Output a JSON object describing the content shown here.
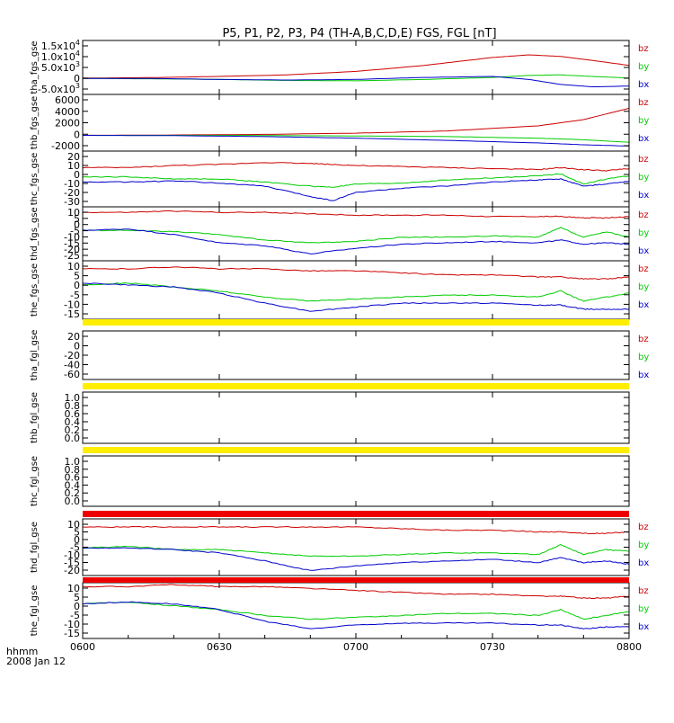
{
  "title": "P5, P1, P2, P3, P4 (TH-A,B,C,D,E) FGS, FGL [nT]",
  "footer": {
    "axis_label": "hhmm",
    "date": "2008 Jan 12"
  },
  "x_ticks": [
    "0600",
    "0630",
    "0700",
    "0730",
    "0800"
  ],
  "colors": {
    "bx": "#0000cc",
    "by": "#00cc00",
    "bz": "#cc0000",
    "flag_yellow": "#ffee00",
    "flag_red": "#ee0000",
    "axis": "#000000"
  },
  "panels": [
    {
      "ylabel": "tha_fgs_gse",
      "ticks": [
        [
          "1.5x10",
          "4"
        ],
        [
          "1.0x10",
          "4"
        ],
        [
          "5.0x10",
          "3"
        ],
        [
          "0",
          ""
        ],
        [
          "-5.0x10",
          "3"
        ]
      ],
      "legend": [
        "bz",
        "by",
        "bx"
      ]
    },
    {
      "ylabel": "thb_fgs_gse",
      "ticks": [
        [
          "6000",
          ""
        ],
        [
          "4000",
          ""
        ],
        [
          "2000",
          ""
        ],
        [
          "0",
          ""
        ],
        [
          "-2000",
          ""
        ]
      ],
      "legend": [
        "bz",
        "by",
        "bx"
      ]
    },
    {
      "ylabel": "thc_fgs_gse",
      "ticks": [
        [
          "20",
          ""
        ],
        [
          "10",
          ""
        ],
        [
          "0",
          ""
        ],
        [
          "-10",
          ""
        ],
        [
          "-20",
          ""
        ],
        [
          "-30",
          ""
        ]
      ],
      "legend": [
        "bz",
        "by",
        "bx"
      ]
    },
    {
      "ylabel": "thd_fgs_gse",
      "ticks": [
        [
          "10",
          ""
        ],
        [
          "5",
          ""
        ],
        [
          "0",
          ""
        ],
        [
          "-5",
          ""
        ],
        [
          "-10",
          ""
        ],
        [
          "-15",
          ""
        ],
        [
          "-20",
          ""
        ],
        [
          "-25",
          ""
        ]
      ],
      "legend": [
        "bz",
        "by",
        "bx"
      ]
    },
    {
      "ylabel": "the_fgs_gse",
      "ticks": [
        [
          "10",
          ""
        ],
        [
          "5",
          ""
        ],
        [
          "0",
          ""
        ],
        [
          "-5",
          ""
        ],
        [
          "-10",
          ""
        ],
        [
          "-15",
          ""
        ]
      ],
      "legend": [
        "bz",
        "by",
        "bx"
      ]
    },
    {
      "ylabel": "tha_fgl_gse",
      "ticks": [
        [
          "20",
          ""
        ],
        [
          "0",
          ""
        ],
        [
          "-20",
          ""
        ],
        [
          "-40",
          ""
        ],
        [
          "-60",
          ""
        ]
      ],
      "legend": [
        "bz",
        "by",
        "bx"
      ]
    },
    {
      "ylabel": "thb_fgl_gse",
      "ticks": [
        [
          "1.0",
          ""
        ],
        [
          "0.8",
          ""
        ],
        [
          "0.6",
          ""
        ],
        [
          "0.4",
          ""
        ],
        [
          "0.2",
          ""
        ],
        [
          "0.0",
          ""
        ]
      ],
      "legend": []
    },
    {
      "ylabel": "thc_fgl_gse",
      "ticks": [
        [
          "1.0",
          ""
        ],
        [
          "0.8",
          ""
        ],
        [
          "0.6",
          ""
        ],
        [
          "0.4",
          ""
        ],
        [
          "0.2",
          ""
        ],
        [
          "0.0",
          ""
        ]
      ],
      "legend": []
    },
    {
      "ylabel": "thd_fgl_gse",
      "ticks": [
        [
          "10",
          ""
        ],
        [
          "5",
          ""
        ],
        [
          "0",
          ""
        ],
        [
          "-5",
          ""
        ],
        [
          "-10",
          ""
        ],
        [
          "-15",
          ""
        ],
        [
          "-20",
          ""
        ]
      ],
      "legend": [
        "bz",
        "by",
        "bx"
      ]
    },
    {
      "ylabel": "the_fgl_gse",
      "ticks": [
        [
          "10",
          ""
        ],
        [
          "5",
          ""
        ],
        [
          "0",
          ""
        ],
        [
          "-5",
          ""
        ],
        [
          "-10",
          ""
        ],
        [
          "-15",
          ""
        ]
      ],
      "legend": [
        "bz",
        "by",
        "bx"
      ]
    }
  ],
  "chart_data": {
    "type": "line",
    "title": "P5, P1, P2, P3, P4 (TH-A,B,C,D,E) FGS, FGL [nT]",
    "x_unit": "hhmm (UT), 2008 Jan 12",
    "x_range": [
      "0600",
      "0800"
    ],
    "grid": false,
    "legend_placement": "right of each panel",
    "panels": [
      {
        "name": "tha_fgs_gse",
        "ylim": [
          -8000,
          19000
        ],
        "x": [
          "0600",
          "0615",
          "0630",
          "0645",
          "0700",
          "0715",
          "0730",
          "0738",
          "0745",
          "0752",
          "0800"
        ],
        "series": [
          {
            "name": "bz",
            "values": [
              200,
              400,
              1000,
              1800,
              3500,
              6500,
              10500,
              11800,
              11000,
              9000,
              6500
            ]
          },
          {
            "name": "by",
            "values": [
              0,
              -200,
              -500,
              -1000,
              -1200,
              -500,
              500,
              1500,
              1800,
              1000,
              200
            ]
          },
          {
            "name": "bx",
            "values": [
              0,
              0,
              -500,
              -800,
              -500,
              500,
              1000,
              -500,
              -3000,
              -4200,
              -3800
            ]
          }
        ]
      },
      {
        "name": "thb_fgs_gse",
        "ylim": [
          -2500,
          6500
        ],
        "x": [
          "0600",
          "0620",
          "0640",
          "0700",
          "0720",
          "0740",
          "0750",
          "0800"
        ],
        "series": [
          {
            "name": "bz",
            "values": [
              0,
              50,
              150,
              350,
              700,
              1500,
              2500,
              4300
            ]
          },
          {
            "name": "by",
            "values": [
              0,
              0,
              -30,
              -100,
              -200,
              -450,
              -700,
              -1100
            ]
          },
          {
            "name": "bx",
            "values": [
              0,
              -50,
              -200,
              -450,
              -800,
              -1200,
              -1500,
              -1700
            ]
          }
        ]
      },
      {
        "name": "thc_fgs_gse",
        "ylim": [
          -32,
          22
        ],
        "x": [
          "0600",
          "0610",
          "0620",
          "0630",
          "0640",
          "0650",
          "0655",
          "0700",
          "0710",
          "0720",
          "0730",
          "0740",
          "0745",
          "0750",
          "0755",
          "0800"
        ],
        "series": [
          {
            "name": "bz",
            "values": [
              6,
              6,
              8,
              9,
              11,
              10,
              9,
              8,
              7,
              6,
              5,
              4,
              6,
              4,
              3,
              5
            ]
          },
          {
            "name": "by",
            "values": [
              -3,
              -3,
              -5,
              -5,
              -8,
              -12,
              -13,
              -10,
              -9,
              -6,
              -4,
              -2,
              0,
              -10,
              -5,
              -2
            ]
          },
          {
            "name": "bx",
            "values": [
              -8,
              -8,
              -7,
              -9,
              -12,
              -22,
              -26,
              -18,
              -14,
              -12,
              -8,
              -6,
              -5,
              -12,
              -10,
              -7
            ]
          }
        ]
      },
      {
        "name": "thd_fgs_gse",
        "ylim": [
          -27,
          12
        ],
        "x": [
          "0600",
          "0610",
          "0620",
          "0630",
          "0640",
          "0650",
          "0700",
          "0710",
          "0720",
          "0730",
          "0740",
          "0745",
          "0750",
          "0755",
          "0800"
        ],
        "series": [
          {
            "name": "bz",
            "values": [
              8,
              8,
              9,
              8,
              8,
              7,
              6,
              6,
              6,
              5,
              5,
              5,
              4,
              4,
              5
            ]
          },
          {
            "name": "by",
            "values": [
              -5,
              -5,
              -6,
              -8,
              -12,
              -14,
              -13,
              -10,
              -10,
              -9,
              -10,
              -3,
              -10,
              -6,
              -10
            ]
          },
          {
            "name": "bx",
            "values": [
              -5,
              -4,
              -8,
              -14,
              -16,
              -22,
              -18,
              -15,
              -14,
              -13,
              -14,
              -12,
              -15,
              -14,
              -15
            ]
          }
        ]
      },
      {
        "name": "the_fgs_gse",
        "ylim": [
          -17,
          12
        ],
        "x": [
          "0600",
          "0610",
          "0620",
          "0630",
          "0640",
          "0650",
          "0700",
          "0710",
          "0720",
          "0730",
          "0740",
          "0745",
          "0750",
          "0755",
          "0800"
        ],
        "series": [
          {
            "name": "bz",
            "values": [
              8,
              8,
              9,
              8,
              8,
              7,
              7,
              6,
              5,
              5,
              4,
              4,
              3,
              3,
              4
            ]
          },
          {
            "name": "by",
            "values": [
              0,
              1,
              -1,
              -3,
              -6,
              -8,
              -7,
              -6,
              -5,
              -5,
              -6,
              -3,
              -8,
              -6,
              -4
            ]
          },
          {
            "name": "bx",
            "values": [
              1,
              0,
              -1,
              -4,
              -9,
              -13,
              -11,
              -9,
              -9,
              -9,
              -10,
              -10,
              -12,
              -12,
              -12
            ]
          }
        ]
      },
      {
        "name": "tha_fgl_gse",
        "ylim": [
          -70,
          30
        ],
        "series": []
      },
      {
        "name": "thb_fgl_gse",
        "ylim": [
          -0.1,
          1.1
        ],
        "series": []
      },
      {
        "name": "thc_fgl_gse",
        "ylim": [
          -0.1,
          1.1
        ],
        "series": []
      },
      {
        "name": "thd_fgl_gse",
        "ylim": [
          -22,
          13
        ],
        "x": [
          "0600",
          "0610",
          "0620",
          "0630",
          "0640",
          "0650",
          "0700",
          "0710",
          "0720",
          "0730",
          "0740",
          "0745",
          "0750",
          "0755",
          "0800"
        ],
        "series": [
          {
            "name": "bz",
            "values": [
              8,
              8,
              8,
              8,
              8,
              8,
              8,
              7,
              6,
              6,
              5,
              5,
              4,
              4,
              5
            ]
          },
          {
            "name": "by",
            "values": [
              -5,
              -4,
              -6,
              -6,
              -8,
              -10,
              -10,
              -9,
              -8,
              -8,
              -9,
              -3,
              -9,
              -6,
              -7
            ]
          },
          {
            "name": "bx",
            "values": [
              -5,
              -5,
              -6,
              -8,
              -13,
              -19,
              -16,
              -14,
              -13,
              -12,
              -14,
              -11,
              -14,
              -13,
              -15
            ]
          }
        ]
      },
      {
        "name": "the_fgl_gse",
        "ylim": [
          -17,
          12
        ],
        "x": [
          "0600",
          "0610",
          "0620",
          "0630",
          "0640",
          "0650",
          "0700",
          "0710",
          "0720",
          "0730",
          "0740",
          "0745",
          "0750",
          "0755",
          "0800"
        ],
        "series": [
          {
            "name": "bz",
            "values": [
              10,
              10,
              11,
              10,
              10,
              9,
              8,
              7,
              6,
              6,
              5,
              5,
              4,
              4,
              5
            ]
          },
          {
            "name": "by",
            "values": [
              1,
              2,
              0,
              -2,
              -5,
              -7,
              -6,
              -5,
              -4,
              -4,
              -5,
              -2,
              -7,
              -5,
              -3
            ]
          },
          {
            "name": "bx",
            "values": [
              1,
              2,
              1,
              -2,
              -8,
              -12,
              -10,
              -9,
              -9,
              -9,
              -10,
              -10,
              -12,
              -11,
              -11
            ]
          }
        ]
      }
    ]
  }
}
